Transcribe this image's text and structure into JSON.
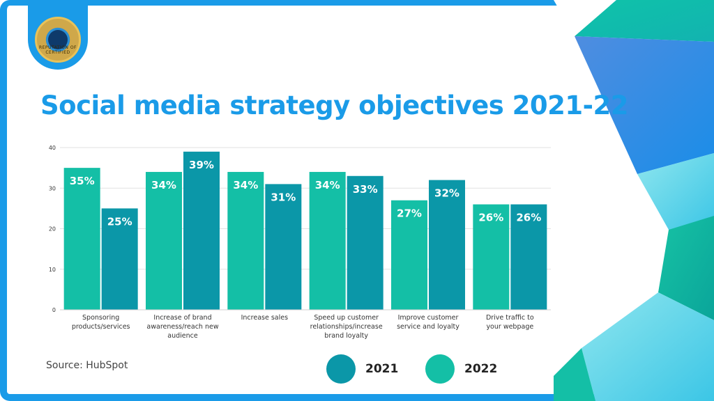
{
  "logo": {
    "text": "REPUTATION OF CERTIFIED"
  },
  "title": "Social media strategy objectives 2021-22",
  "source": "Source: HubSpot",
  "colors": {
    "accent": "#1a9be8",
    "series_2022": "#14bfa6",
    "series_2021": "#0b97a8"
  },
  "legend": [
    {
      "label": "2021",
      "color": "#0b97a8"
    },
    {
      "label": "2022",
      "color": "#14bfa6"
    }
  ],
  "chart_data": {
    "type": "bar",
    "categories": [
      [
        "Sponsoring",
        "products/services"
      ],
      [
        "Increase of brand",
        "awareness/reach new",
        "audience"
      ],
      [
        "Increase sales"
      ],
      [
        "Speed up customer",
        "relationships/increase",
        "brand loyalty"
      ],
      [
        "Improve customer",
        "service and loyalty"
      ],
      [
        "Drive traffic to",
        "your webpage"
      ]
    ],
    "series": [
      {
        "name": "2022",
        "color": "#14bfa6",
        "values": [
          35,
          34,
          34,
          34,
          27,
          26
        ],
        "labels": [
          "35%",
          "34%",
          "34%",
          "34%",
          "27%",
          "26%"
        ]
      },
      {
        "name": "2021",
        "color": "#0b97a8",
        "values": [
          25,
          39,
          31,
          33,
          32,
          26
        ],
        "labels": [
          "25%",
          "39%",
          "31%",
          "33%",
          "32%",
          "26%"
        ]
      }
    ],
    "yticks": [
      0,
      10,
      20,
      30,
      40
    ],
    "ylim": [
      0,
      40
    ],
    "grid": true,
    "legend_position": "bottom"
  }
}
